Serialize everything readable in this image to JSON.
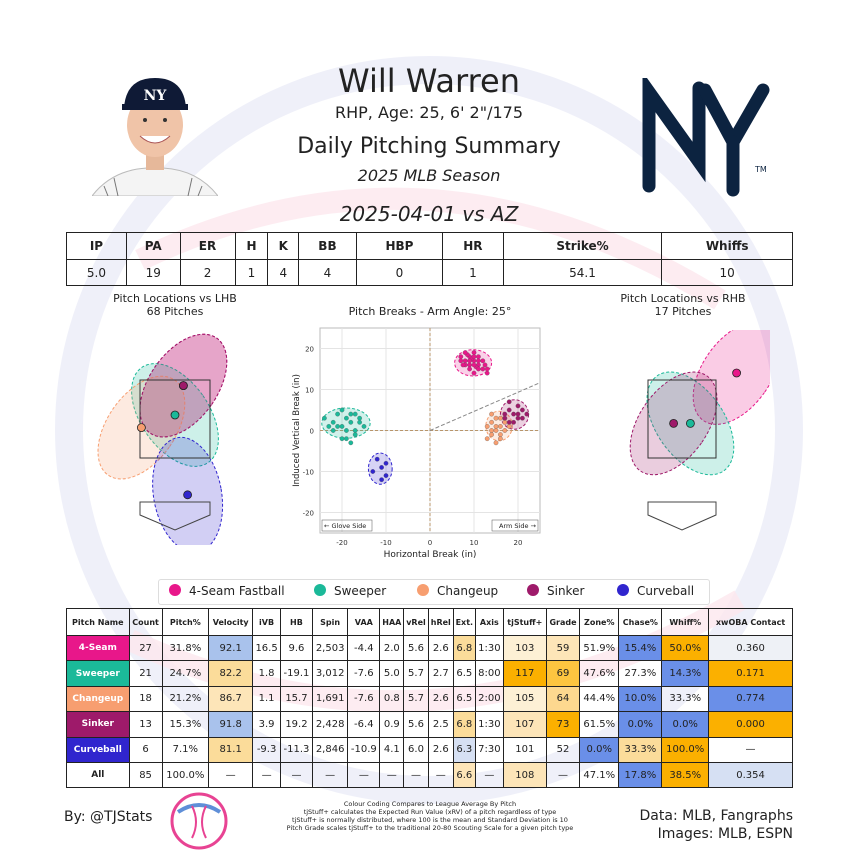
{
  "header": {
    "player_name": "Will Warren",
    "player_info": "RHP, Age: 25, 6' 2\"/175",
    "summary_title": "Daily Pitching Summary",
    "season": "2025 MLB Season",
    "game": "2025-04-01 vs AZ"
  },
  "colors": {
    "4-Seam Fastball": "#e8178a",
    "Sweeper": "#1bb999",
    "Changeup": "#f79e70",
    "Sinker": "#9e1a6a",
    "Curveball": "#3025ce"
  },
  "stats": {
    "headers": [
      "IP",
      "PA",
      "ER",
      "H",
      "K",
      "BB",
      "HBP",
      "HR",
      "Strike%",
      "Whiffs"
    ],
    "values": [
      "5.0",
      "19",
      "2",
      "1",
      "4",
      "4",
      "0",
      "1",
      "54.1",
      "10"
    ]
  },
  "panels": {
    "lhb_title": "Pitch Locations vs LHB",
    "lhb_count": "68 Pitches",
    "rhb_title": "Pitch Locations vs RHB",
    "rhb_count": "17 Pitches"
  },
  "chart_data": {
    "type": "scatter",
    "title": "Pitch Breaks - Arm Angle: 25°",
    "xlabel": "Horizontal Break (in)",
    "ylabel": "Induced Vertical Break (in)",
    "xlim": [
      -25,
      25
    ],
    "ylim": [
      -25,
      25
    ],
    "xticks": [
      -20,
      -10,
      0,
      10,
      20
    ],
    "yticks": [
      -20,
      -10,
      0,
      10,
      20
    ],
    "grid": true,
    "arm_angle_deg": 25,
    "glove_side_label": "← Glove Side",
    "arm_side_label": "Arm Side →",
    "series": [
      {
        "name": "4-Seam Fastball",
        "ellipse": {
          "cx": 9.8,
          "cy": 16.5,
          "rx": 4.2,
          "ry": 3.2,
          "angle": 0
        },
        "points": [
          [
            7,
            18
          ],
          [
            8,
            17
          ],
          [
            9,
            16
          ],
          [
            10,
            17
          ],
          [
            11,
            16
          ],
          [
            12,
            15
          ],
          [
            9,
            18
          ],
          [
            10,
            19
          ],
          [
            8,
            16
          ],
          [
            11,
            18
          ],
          [
            9.5,
            17.5
          ],
          [
            10.5,
            15.5
          ],
          [
            12,
            17
          ],
          [
            7.5,
            16
          ],
          [
            13,
            14
          ],
          [
            9,
            15
          ],
          [
            11,
            17
          ],
          [
            10,
            14
          ],
          [
            8.5,
            18.5
          ],
          [
            12.5,
            16
          ],
          [
            10,
            16
          ],
          [
            9,
            17
          ],
          [
            11,
            15
          ],
          [
            13,
            15
          ],
          [
            8,
            19
          ],
          [
            10,
            18
          ],
          [
            7,
            17
          ]
        ]
      },
      {
        "name": "Sweeper",
        "ellipse": {
          "cx": -19.1,
          "cy": 1.8,
          "rx": 5.5,
          "ry": 3.7,
          "angle": 0
        },
        "points": [
          [
            -24,
            3
          ],
          [
            -22,
            2
          ],
          [
            -21,
            4
          ],
          [
            -20,
            1
          ],
          [
            -19,
            3
          ],
          [
            -18,
            2
          ],
          [
            -17,
            0
          ],
          [
            -16,
            3
          ],
          [
            -22,
            0
          ],
          [
            -20,
            -2
          ],
          [
            -18,
            4
          ],
          [
            -17,
            -1
          ],
          [
            -19,
            -2
          ],
          [
            -21,
            1
          ],
          [
            -16,
            2
          ],
          [
            -15,
            1
          ],
          [
            -18,
            -3
          ],
          [
            -20,
            5
          ],
          [
            -23,
            1
          ],
          [
            -17,
            4
          ],
          [
            -19,
            0
          ]
        ]
      },
      {
        "name": "Changeup",
        "ellipse": {
          "cx": 15.7,
          "cy": 1.1,
          "rx": 3.0,
          "ry": 3.6,
          "angle": 0
        },
        "points": [
          [
            14,
            2
          ],
          [
            15,
            0
          ],
          [
            16,
            1
          ],
          [
            17,
            2
          ],
          [
            15,
            3
          ],
          [
            14,
            -1
          ],
          [
            16,
            -2
          ],
          [
            13,
            1
          ],
          [
            15,
            -3
          ],
          [
            17,
            0
          ],
          [
            16,
            3
          ],
          [
            14,
            4
          ],
          [
            18,
            1
          ],
          [
            15,
            1
          ],
          [
            13,
            -2
          ],
          [
            16,
            -1
          ],
          [
            17,
            3
          ],
          [
            14,
            0
          ]
        ]
      },
      {
        "name": "Sinker",
        "ellipse": {
          "cx": 19.2,
          "cy": 3.9,
          "rx": 3.2,
          "ry": 3.6,
          "angle": 0
        },
        "points": [
          [
            18,
            5
          ],
          [
            19,
            4
          ],
          [
            20,
            3
          ],
          [
            21,
            5
          ],
          [
            18,
            2
          ],
          [
            17,
            4
          ],
          [
            20,
            6
          ],
          [
            19,
            2
          ],
          [
            22,
            4
          ],
          [
            18,
            7
          ],
          [
            21,
            3
          ],
          [
            17,
            3
          ],
          [
            20,
            4
          ]
        ]
      },
      {
        "name": "Curveball",
        "ellipse": {
          "cx": -11.3,
          "cy": -9.3,
          "rx": 2.7,
          "ry": 3.8,
          "angle": 0
        },
        "points": [
          [
            -12,
            -7
          ],
          [
            -11,
            -9
          ],
          [
            -10,
            -11
          ],
          [
            -13,
            -10
          ],
          [
            -11,
            -12
          ],
          [
            -10,
            -8
          ]
        ]
      }
    ]
  },
  "legend": {
    "items": [
      "4-Seam Fastball",
      "Sweeper",
      "Changeup",
      "Sinker",
      "Curveball"
    ]
  },
  "pitch_table": {
    "headers": [
      "Pitch Name",
      "Count",
      "Pitch%",
      "Velocity",
      "iVB",
      "HB",
      "Spin",
      "VAA",
      "HAA",
      "vRel",
      "hRel",
      "Ext.",
      "Axis",
      "tjStuff+",
      "Grade",
      "Zone%",
      "Chase%",
      "Whiff%",
      "xwOBA Contact"
    ],
    "rows": [
      {
        "name": "4-Seam",
        "name_bg": "#e8178a",
        "cells": [
          "27",
          "31.8%",
          "92.1",
          "16.5",
          "9.6",
          "2,503",
          "-4.4",
          "2.0",
          "5.6",
          "2.6",
          "6.8",
          "1:30",
          "103",
          "59",
          "51.9%",
          "15.4%",
          "50.0%",
          "0.360"
        ],
        "bgs": [
          "",
          "",
          "#a9c2ec",
          "",
          "",
          "",
          "",
          "",
          "",
          "",
          "#fbdc9a",
          "",
          "#fdf0d5",
          "#fde5b8",
          "",
          "#6a8fe8",
          "#fbb000",
          "#eef1f6"
        ]
      },
      {
        "name": "Sweeper",
        "name_bg": "#1bb999",
        "cells": [
          "21",
          "24.7%",
          "82.2",
          "1.8",
          "-19.1",
          "3,012",
          "-7.6",
          "5.0",
          "5.7",
          "2.7",
          "6.5",
          "8:00",
          "117",
          "69",
          "47.6%",
          "27.3%",
          "14.3%",
          "0.171"
        ],
        "bgs": [
          "",
          "",
          "#fbdc9a",
          "",
          "",
          "",
          "",
          "",
          "",
          "",
          "",
          "",
          "#fbb000",
          "#fdc540",
          "",
          "",
          "#6a8fe8",
          "#fbb000"
        ]
      },
      {
        "name": "Changeup",
        "name_bg": "#f79e70",
        "cells": [
          "18",
          "21.2%",
          "86.7",
          "1.1",
          "15.7",
          "1,691",
          "-7.6",
          "0.8",
          "5.7",
          "2.6",
          "6.5",
          "2:00",
          "105",
          "64",
          "44.4%",
          "10.0%",
          "33.3%",
          "0.774"
        ],
        "bgs": [
          "",
          "",
          "#fde5b8",
          "",
          "",
          "",
          "",
          "",
          "",
          "",
          "",
          "",
          "#fdf0d5",
          "#fdd88f",
          "",
          "#6a8fe8",
          "",
          "#6a8fe8"
        ]
      },
      {
        "name": "Sinker",
        "name_bg": "#9e1a6a",
        "cells": [
          "13",
          "15.3%",
          "91.8",
          "3.9",
          "19.2",
          "2,428",
          "-6.4",
          "0.9",
          "5.6",
          "2.5",
          "6.8",
          "1:30",
          "107",
          "73",
          "61.5%",
          "0.0%",
          "0.0%",
          "0.000"
        ],
        "bgs": [
          "",
          "",
          "#a9c2ec",
          "",
          "",
          "",
          "",
          "",
          "",
          "",
          "#fbdc9a",
          "",
          "#fde5b8",
          "#fbb000",
          "",
          "#6a8fe8",
          "#6a8fe8",
          "#fbb000"
        ]
      },
      {
        "name": "Curveball",
        "name_bg": "#3025ce",
        "cells": [
          "6",
          "7.1%",
          "81.1",
          "-9.3",
          "-11.3",
          "2,846",
          "-10.9",
          "4.1",
          "6.0",
          "2.6",
          "6.3",
          "7:30",
          "101",
          "52",
          "0.0%",
          "33.3%",
          "100.0%",
          "—"
        ],
        "bgs": [
          "",
          "",
          "#fbdc9a",
          "",
          "",
          "",
          "",
          "",
          "",
          "",
          "#d6e0f3",
          "",
          "",
          "",
          "#6a8fe8",
          "#fbdc9a",
          "#fbb000",
          ""
        ]
      },
      {
        "name": "All",
        "name_bg": "#ffffff",
        "cells": [
          "85",
          "100.0%",
          "—",
          "—",
          "—",
          "—",
          "—",
          "—",
          "—",
          "—",
          "6.6",
          "—",
          "108",
          "—",
          "47.1%",
          "17.8%",
          "38.5%",
          "0.354"
        ],
        "bgs": [
          "",
          "",
          "",
          "",
          "",
          "",
          "",
          "",
          "",
          "",
          "#fde5b8",
          "",
          "#fde5b8",
          "",
          "",
          "#6a8fe8",
          "#fbb000",
          "#d6e0f3"
        ]
      }
    ]
  },
  "locations": {
    "lhb": [
      {
        "pitch": "4-Seam Fastball",
        "x": 0.2,
        "z": 3.2
      },
      {
        "pitch": "Sweeper",
        "x": 0.0,
        "z": 2.5
      },
      {
        "pitch": "Changeup",
        "x": -0.8,
        "z": 2.2
      },
      {
        "pitch": "Sinker",
        "x": 0.2,
        "z": 3.2
      },
      {
        "pitch": "Curveball",
        "x": 0.3,
        "z": 0.6
      }
    ],
    "rhb": [
      {
        "pitch": "4-Seam Fastball",
        "x": 1.3,
        "z": 3.5
      },
      {
        "pitch": "Sweeper",
        "x": 0.2,
        "z": 2.3
      },
      {
        "pitch": "Sinker",
        "x": -0.2,
        "z": 2.3
      }
    ]
  },
  "footer": {
    "byline": "By: @TJStats",
    "notes": [
      "Colour Coding Compares to League Average By Pitch",
      "tjStuff+ calculates the Expected Run Value (xRV) of a pitch regardless of type",
      "tjStuff+ is normally distributed, where 100 is the mean and Standard Deviation is 10",
      "Pitch Grade scales tjStuff+ to the traditional 20-80 Scouting Scale for a given pitch type"
    ],
    "source_data": "Data: MLB, Fangraphs",
    "source_images": "Images: MLB, ESPN"
  }
}
